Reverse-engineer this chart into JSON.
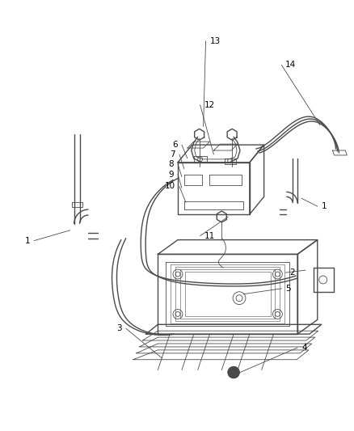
{
  "bg_color": "#ffffff",
  "line_color": "#4a4a4a",
  "label_color": "#000000",
  "label_fontsize": 7.5,
  "fig_width": 4.38,
  "fig_height": 5.33,
  "dpi": 100
}
